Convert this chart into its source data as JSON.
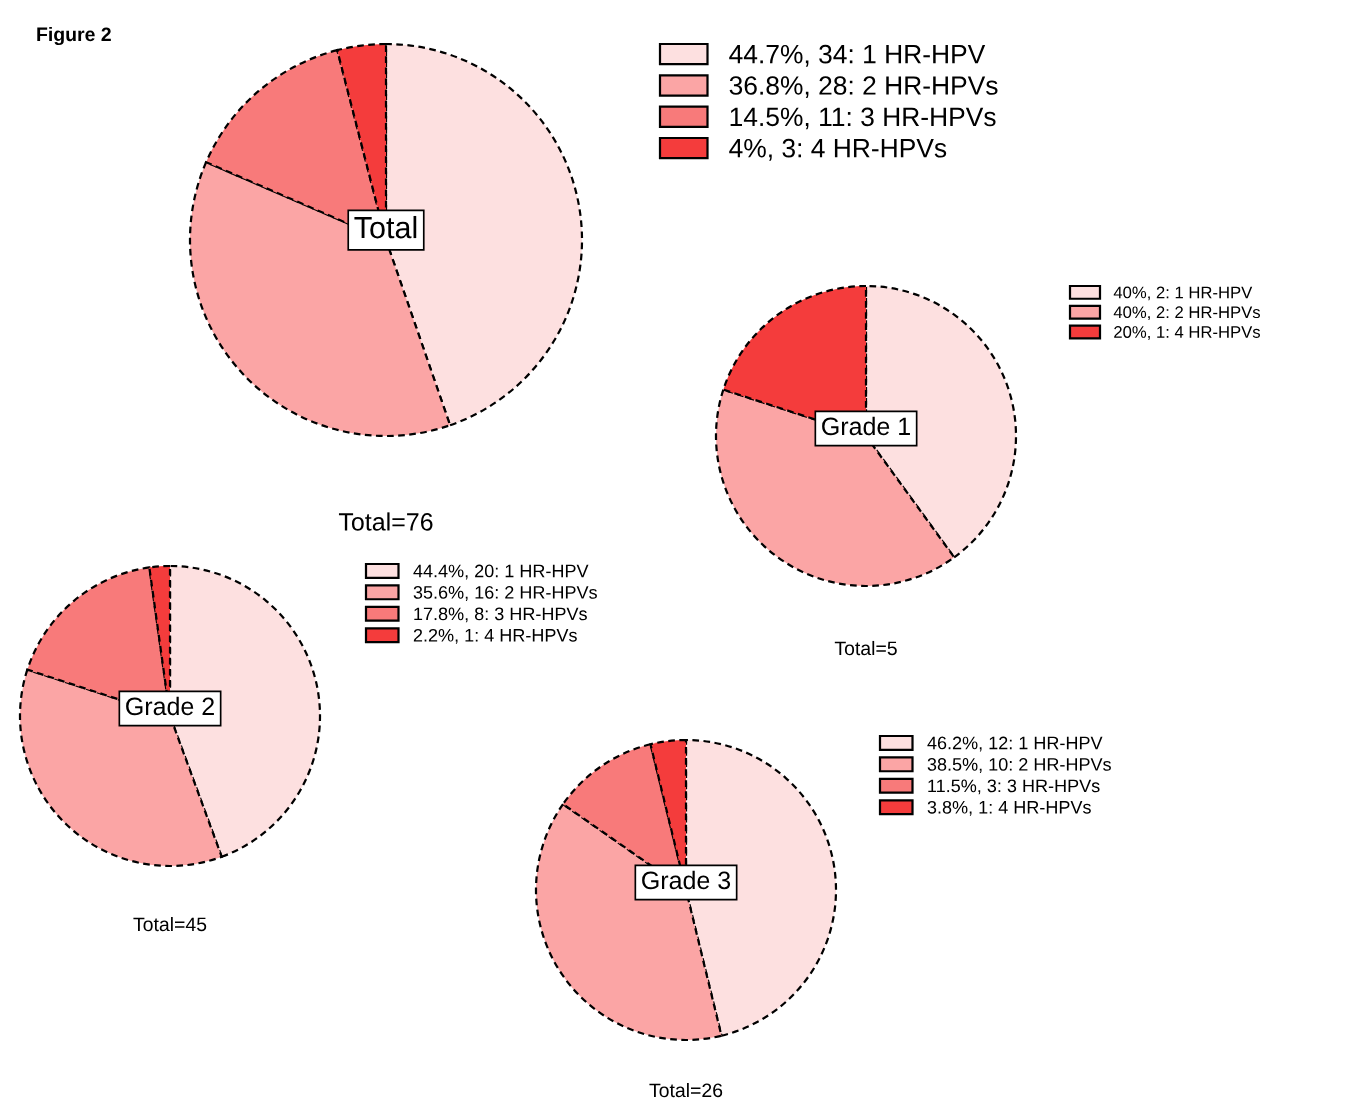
{
  "chart_data": [
    {
      "type": "pie",
      "title": "Total",
      "xlabel": "Total=76",
      "annotations": [
        "Figure 2"
      ],
      "legend": "right",
      "categories": [
        "44.7%, 34: 1 HR-HPV",
        "36.8%, 28: 2 HR-HPVs",
        "14.5%, 11: 3 HR-HPVs",
        "4%, 3: 4 HR-HPVs"
      ],
      "values": [
        44.7,
        36.8,
        14.5,
        4
      ],
      "colors": [
        "#fde0e0",
        "#fba5a5",
        "#f87a7a",
        "#f43c3c"
      ]
    },
    {
      "type": "pie",
      "title": "Grade 1",
      "xlabel": "Total=5",
      "legend": "right",
      "categories": [
        "40%, 2: 1 HR-HPV",
        "40%, 2: 2 HR-HPVs",
        "20%, 1: 4 HR-HPVs"
      ],
      "values": [
        40,
        40,
        20
      ],
      "colors": [
        "#fde0e0",
        "#fba5a5",
        "#f43c3c"
      ]
    },
    {
      "type": "pie",
      "title": "Grade 2",
      "xlabel": "Total=45",
      "legend": "right",
      "categories": [
        "44.4%, 20: 1 HR-HPV",
        "35.6%, 16: 2 HR-HPVs",
        "17.8%, 8: 3 HR-HPVs",
        "2.2%, 1: 4 HR-HPVs"
      ],
      "values": [
        44.4,
        35.6,
        17.8,
        2.2
      ],
      "colors": [
        "#fde0e0",
        "#fba5a5",
        "#f87a7a",
        "#f43c3c"
      ]
    },
    {
      "type": "pie",
      "title": "Grade 3",
      "xlabel": "Total=26",
      "legend": "right",
      "categories": [
        "46.2%, 12: 1 HR-HPV",
        "38.5%, 10: 2 HR-HPVs",
        "11.5%, 3: 3 HR-HPVs",
        "3.8%, 1: 4 HR-HPVs"
      ],
      "values": [
        46.2,
        38.5,
        11.5,
        3.8
      ],
      "colors": [
        "#fde0e0",
        "#fba5a5",
        "#f87a7a",
        "#f43c3c"
      ]
    }
  ]
}
